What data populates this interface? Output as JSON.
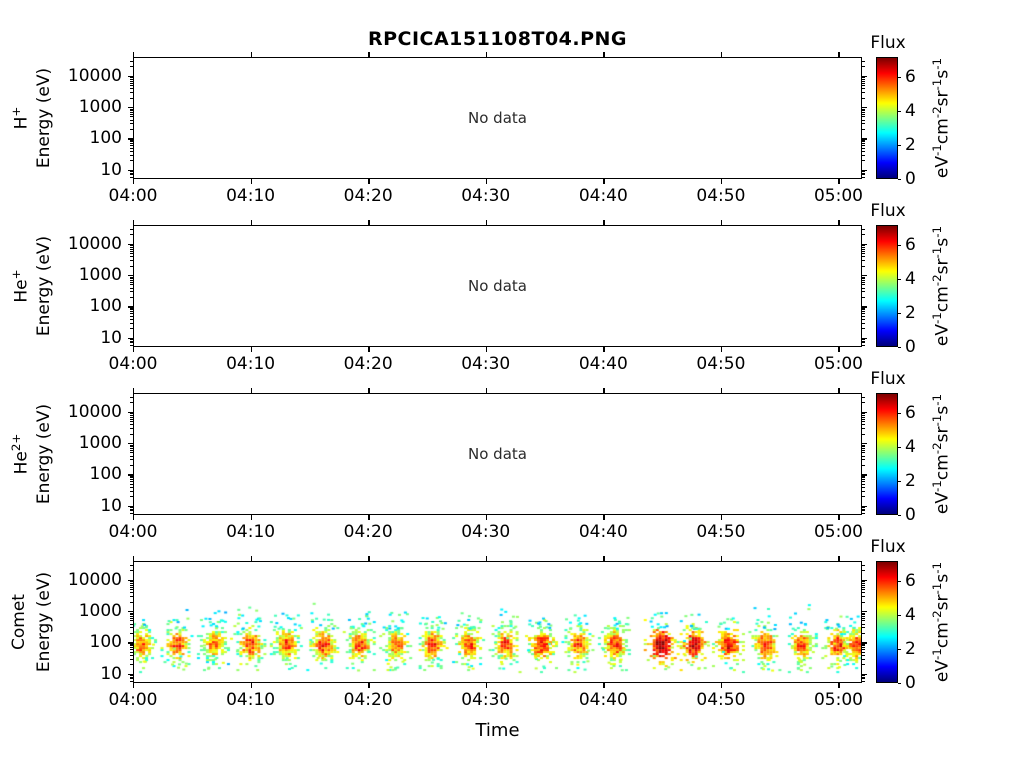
{
  "figure": {
    "title": "RPCICA151108T04.PNG",
    "background": "#ffffff",
    "text_color": "#000000"
  },
  "chart_data": {
    "type": "heatmap",
    "subtype": "time-energy ion spectrogram, 4 stacked panels",
    "x_axis": {
      "label": "Time",
      "tick_labels": [
        "04:00",
        "04:10",
        "04:20",
        "04:30",
        "04:40",
        "04:50",
        "05:00"
      ],
      "tick_minutes": [
        0,
        10,
        20,
        30,
        40,
        50,
        60
      ],
      "range_minutes": [
        0,
        62
      ],
      "minor_ticks": false
    },
    "y_axis": {
      "label": "Energy (eV)",
      "scale": "log",
      "tick_labels": [
        "10000",
        "1000",
        "100",
        "10"
      ],
      "tick_values": [
        10000,
        1000,
        100,
        10
      ],
      "range_ev": [
        5,
        40000
      ]
    },
    "colorbar": {
      "title": "Flux",
      "tick_labels": [
        "6",
        "4",
        "2",
        "0"
      ],
      "tick_values": [
        6,
        4,
        2,
        0
      ],
      "range": [
        0,
        7.2
      ],
      "colormap": "jet",
      "units_parts": [
        [
          "eV",
          "-1"
        ],
        [
          "cm",
          "-2"
        ],
        [
          "sr",
          "-1"
        ],
        [
          "s",
          "-1"
        ]
      ]
    },
    "panels": [
      {
        "species_base": "H",
        "species_sup": "+",
        "no_data": true,
        "no_data_label": "No data"
      },
      {
        "species_base": "He",
        "species_sup": "+",
        "no_data": true,
        "no_data_label": "No data"
      },
      {
        "species_base": "He",
        "species_sup": "2+",
        "no_data": true,
        "no_data_label": "No data"
      },
      {
        "species_base": "Comet",
        "species_sup": "",
        "no_data": false,
        "core_logE": 1.95,
        "core_energy_ev": 90,
        "energy_extent_ev": [
          15,
          2000
        ],
        "bursts": [
          {
            "t": 0.6,
            "peak": 5.7,
            "halo": 3.2
          },
          {
            "t": 3.7,
            "peak": 5.9,
            "halo": 3.3
          },
          {
            "t": 6.8,
            "peak": 5.6,
            "halo": 3.1
          },
          {
            "t": 9.9,
            "peak": 6.0,
            "halo": 3.25
          },
          {
            "t": 13.0,
            "peak": 5.8,
            "halo": 3.0
          },
          {
            "t": 16.1,
            "peak": 6.1,
            "halo": 3.3
          },
          {
            "t": 19.2,
            "peak": 5.9,
            "halo": 3.05
          },
          {
            "t": 22.3,
            "peak": 5.7,
            "halo": 3.1
          },
          {
            "t": 25.4,
            "peak": 6.0,
            "halo": 2.9
          },
          {
            "t": 28.5,
            "peak": 5.8,
            "halo": 3.0
          },
          {
            "t": 31.6,
            "peak": 5.9,
            "halo": 3.15
          },
          {
            "t": 34.7,
            "peak": 6.2,
            "halo": 2.95
          },
          {
            "t": 37.8,
            "peak": 5.8,
            "halo": 3.0
          },
          {
            "t": 40.9,
            "peak": 6.0,
            "halo": 2.9
          },
          {
            "t": 44.8,
            "peak": 7.1,
            "halo": 3.05
          },
          {
            "t": 47.6,
            "peak": 6.6,
            "halo": 3.1
          },
          {
            "t": 50.6,
            "peak": 6.4,
            "halo": 2.95
          },
          {
            "t": 53.7,
            "peak": 6.0,
            "halo": 3.2
          },
          {
            "t": 56.8,
            "peak": 5.8,
            "halo": 3.3
          },
          {
            "t": 59.9,
            "peak": 6.1,
            "halo": 3.0
          },
          {
            "t": 61.5,
            "peak": 5.9,
            "halo": 3.0
          }
        ]
      }
    ]
  }
}
